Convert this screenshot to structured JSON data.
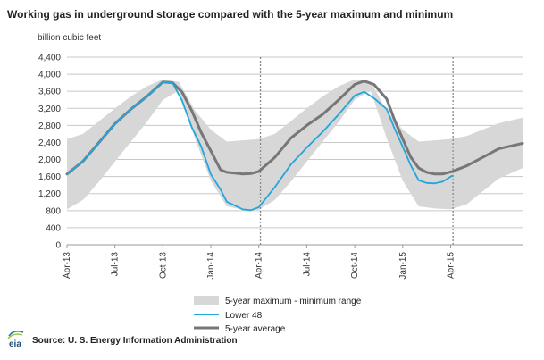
{
  "chart_data": {
    "type": "area",
    "title": "Working gas in underground storage compared with the  5-year maximum and minimum",
    "ylabel": "billion cubic feet",
    "ylim": [
      0,
      4400
    ],
    "yticks": [
      0,
      400,
      800,
      1200,
      1600,
      2000,
      2400,
      2800,
      3200,
      3600,
      4000,
      4400
    ],
    "ytick_labels": [
      "0",
      "400",
      "800",
      "1,200",
      "1,600",
      "2,000",
      "2,400",
      "2,800",
      "3,200",
      "3,600",
      "4,000",
      "4,400"
    ],
    "xlim_months": [
      0,
      28.5
    ],
    "x_unit_note": "x values are months after Apr-13",
    "xtick_months": [
      0,
      3,
      6,
      9,
      12,
      15,
      18,
      21,
      24
    ],
    "xtick_labels": [
      "Apr-13",
      "Jul-13",
      "Oct-13",
      "Jan-14",
      "Apr-14",
      "Jul-14",
      "Oct-14",
      "Jan-15",
      "Apr-15"
    ],
    "vertical_markers_months": [
      12.1,
      24.15
    ],
    "grid": "horizontal",
    "legend_position": "bottom",
    "colors": {
      "range": "#d7d7d7",
      "lower48": "#22a6dc",
      "avg": "#777777"
    },
    "series": [
      {
        "name": "5-year maximum - minimum range",
        "kind": "band",
        "x": [
          0,
          1,
          2,
          3,
          4,
          5,
          6,
          7,
          8,
          9,
          10,
          11,
          12,
          13,
          14,
          15,
          16,
          17,
          18,
          19,
          20,
          21,
          22,
          23,
          24,
          25,
          26,
          27,
          28.5
        ],
        "max": [
          2480,
          2600,
          2900,
          3200,
          3480,
          3720,
          3880,
          3820,
          3150,
          2700,
          2420,
          2450,
          2480,
          2600,
          2900,
          3200,
          3480,
          3720,
          3880,
          3820,
          3150,
          2700,
          2420,
          2450,
          2480,
          2550,
          2700,
          2850,
          2980
        ],
        "min": [
          830,
          1050,
          1480,
          1950,
          2420,
          2880,
          3400,
          3620,
          2500,
          1500,
          900,
          820,
          820,
          1050,
          1480,
          1950,
          2420,
          2880,
          3400,
          3620,
          2500,
          1500,
          900,
          850,
          830,
          950,
          1250,
          1550,
          1800
        ]
      },
      {
        "name": "Lower 48",
        "x": [
          0,
          1,
          2,
          3,
          4,
          5,
          6,
          6.6,
          7.2,
          7.8,
          8.4,
          9,
          9.6,
          10,
          10.5,
          11,
          11.5,
          12,
          13,
          14,
          15,
          16,
          17,
          18,
          18.6,
          19.3,
          20,
          20.5,
          21,
          21.5,
          22,
          22.5,
          23,
          23.5,
          24.1
        ],
        "values": [
          1660,
          1960,
          2400,
          2840,
          3180,
          3480,
          3820,
          3800,
          3380,
          2760,
          2300,
          1650,
          1300,
          1010,
          920,
          830,
          810,
          880,
          1350,
          1880,
          2280,
          2650,
          3060,
          3500,
          3590,
          3410,
          3180,
          2720,
          2300,
          1870,
          1510,
          1450,
          1440,
          1480,
          1620
        ]
      },
      {
        "name": "5-year average",
        "x": [
          0,
          1,
          2,
          3,
          4,
          5,
          6,
          6.6,
          7.2,
          7.8,
          8.4,
          9,
          9.6,
          10,
          10.5,
          11,
          11.5,
          12,
          13,
          14,
          15,
          16,
          17,
          18,
          18.6,
          19.2,
          20,
          20.5,
          21,
          21.5,
          22,
          22.5,
          23,
          23.5,
          24.1,
          25,
          26,
          27,
          28.5
        ],
        "values": [
          1660,
          1960,
          2400,
          2840,
          3180,
          3480,
          3820,
          3800,
          3580,
          3150,
          2630,
          2200,
          1760,
          1700,
          1680,
          1660,
          1670,
          1720,
          2050,
          2500,
          2800,
          3060,
          3400,
          3760,
          3840,
          3760,
          3420,
          2920,
          2480,
          2060,
          1800,
          1700,
          1660,
          1660,
          1720,
          1850,
          2050,
          2250,
          2380
        ]
      }
    ]
  },
  "legend": {
    "range_label": "5-year maximum - minimum range",
    "lower48_label": "Lower 48",
    "avg_label": "5-year average"
  },
  "source": "Source:  U. S. Energy Information Administration",
  "logo": {
    "icon": "eia-logo-icon",
    "text": "eia"
  }
}
